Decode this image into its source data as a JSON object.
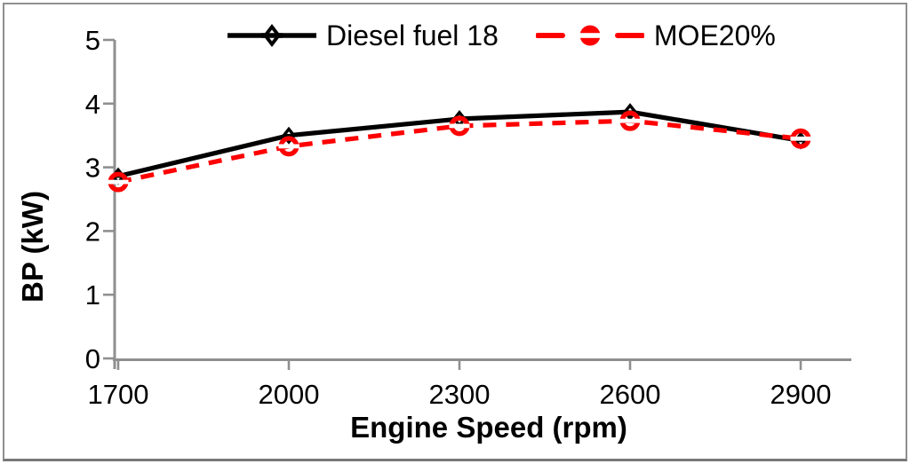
{
  "chart_data": {
    "type": "line",
    "title": "",
    "xlabel": "Engine Speed (rpm)",
    "ylabel": "BP (kW)",
    "categories": [
      "1700",
      "2000",
      "2300",
      "2600",
      "2900"
    ],
    "series": [
      {
        "name": "Diesel fuel 18",
        "color": "#000000",
        "line_style": "solid",
        "marker": "diamond",
        "values": [
          2.86,
          3.5,
          3.76,
          3.87,
          3.42
        ]
      },
      {
        "name": "MOE20%",
        "color": "#fe0000",
        "line_style": "dashed",
        "marker": "circle",
        "values": [
          2.77,
          3.33,
          3.65,
          3.73,
          3.45
        ]
      }
    ],
    "ylim": [
      0,
      5
    ],
    "yticks": [
      0,
      1,
      2,
      3,
      4,
      5
    ],
    "grid": false,
    "legend_position": "top-center",
    "axis_color": "#8f8f8f",
    "frame_border_color": "#8f8f8f"
  }
}
